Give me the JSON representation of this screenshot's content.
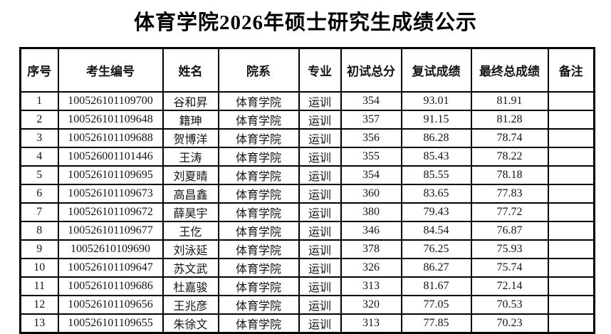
{
  "page": {
    "title": "体育学院2026年硕士研究生成绩公示"
  },
  "table": {
    "columns": [
      {
        "key": "index",
        "label": "序号"
      },
      {
        "key": "candidate_id",
        "label": "考生编号"
      },
      {
        "key": "name",
        "label": "姓名"
      },
      {
        "key": "department",
        "label": "院系"
      },
      {
        "key": "major",
        "label": "专业"
      },
      {
        "key": "initial_score",
        "label": "初试总分"
      },
      {
        "key": "retest_score",
        "label": "复试成绩"
      },
      {
        "key": "final_score",
        "label": "最终总成绩"
      },
      {
        "key": "remark",
        "label": "备注"
      }
    ],
    "rows": [
      {
        "index": "1",
        "candidate_id": "100526101109700",
        "name": "谷和昇",
        "department": "体育学院",
        "major": "运训",
        "initial_score": "354",
        "retest_score": "93.01",
        "final_score": "81.91",
        "remark": ""
      },
      {
        "index": "2",
        "candidate_id": "100526101109648",
        "name": "籍珅",
        "department": "体育学院",
        "major": "运训",
        "initial_score": "357",
        "retest_score": "91.15",
        "final_score": "81.28",
        "remark": ""
      },
      {
        "index": "3",
        "candidate_id": "100526101109688",
        "name": "贺博洋",
        "department": "体育学院",
        "major": "运训",
        "initial_score": "356",
        "retest_score": "86.28",
        "final_score": "78.74",
        "remark": ""
      },
      {
        "index": "4",
        "candidate_id": "100526001101446",
        "name": "王涛",
        "department": "体育学院",
        "major": "运训",
        "initial_score": "355",
        "retest_score": "85.43",
        "final_score": "78.22",
        "remark": ""
      },
      {
        "index": "5",
        "candidate_id": "100526101109695",
        "name": "刘夏晴",
        "department": "体育学院",
        "major": "运训",
        "initial_score": "354",
        "retest_score": "85.55",
        "final_score": "78.18",
        "remark": ""
      },
      {
        "index": "6",
        "candidate_id": "100526101109673",
        "name": "高昌鑫",
        "department": "体育学院",
        "major": "运训",
        "initial_score": "360",
        "retest_score": "83.65",
        "final_score": "77.83",
        "remark": ""
      },
      {
        "index": "7",
        "candidate_id": "100526101109672",
        "name": "薛昊宇",
        "department": "体育学院",
        "major": "运训",
        "initial_score": "380",
        "retest_score": "79.43",
        "final_score": "77.72",
        "remark": ""
      },
      {
        "index": "8",
        "candidate_id": "100526101109677",
        "name": "王仡",
        "department": "体育学院",
        "major": "运训",
        "initial_score": "346",
        "retest_score": "84.54",
        "final_score": "76.87",
        "remark": ""
      },
      {
        "index": "9",
        "candidate_id": "10052610109690",
        "name": "刘泳延",
        "department": "体育学院",
        "major": "运训",
        "initial_score": "378",
        "retest_score": "76.25",
        "final_score": "75.93",
        "remark": ""
      },
      {
        "index": "10",
        "candidate_id": "100526101109647",
        "name": "苏文武",
        "department": "体育学院",
        "major": "运训",
        "initial_score": "326",
        "retest_score": "86.27",
        "final_score": "75.74",
        "remark": ""
      },
      {
        "index": "11",
        "candidate_id": "100526101109686",
        "name": "杜嘉骏",
        "department": "体育学院",
        "major": "运训",
        "initial_score": "313",
        "retest_score": "81.67",
        "final_score": "72.14",
        "remark": ""
      },
      {
        "index": "12",
        "candidate_id": "100526101109656",
        "name": "王兆彦",
        "department": "体育学院",
        "major": "运训",
        "initial_score": "320",
        "retest_score": "77.05",
        "final_score": "70.53",
        "remark": ""
      },
      {
        "index": "13",
        "candidate_id": "100526101109655",
        "name": "朱徐文",
        "department": "体育学院",
        "major": "运训",
        "initial_score": "313",
        "retest_score": "77.85",
        "final_score": "70.23",
        "remark": ""
      }
    ]
  }
}
